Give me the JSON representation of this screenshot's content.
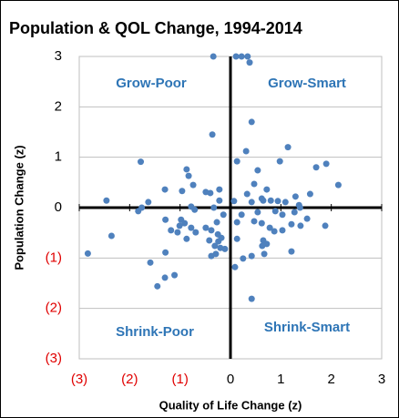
{
  "chart_data": {
    "type": "scatter",
    "title": "Population & QOL Change, 1994-2014",
    "x_label": "Quality of Life Change (z)",
    "y_label": "Population Change (z)",
    "annotations": [
      "Grow-Poor",
      "Grow-Smart",
      "Shrink-Poor",
      "Shrink-Smart"
    ],
    "annotation_color": "#2e75b6",
    "negative_tick_color": "#e00000",
    "color": "#4f81bd",
    "grid": true,
    "xlim": [
      -3,
      3
    ],
    "ylim": [
      -3,
      3
    ],
    "xticks": [
      {
        "value": -3,
        "label": "(3)"
      },
      {
        "value": -2,
        "label": "(2)"
      },
      {
        "value": -1,
        "label": "(1)"
      },
      0,
      1,
      2,
      3
    ],
    "yticks": [
      {
        "value": -3,
        "label": "(3)"
      },
      {
        "value": -2,
        "label": "(2)"
      },
      {
        "value": -1,
        "label": "(1)"
      },
      0,
      1,
      2,
      3
    ],
    "x": [
      -0.34,
      0.11,
      0.22,
      0.34,
      0.38,
      0.42,
      -0.36,
      1.14,
      0.31,
      0.13,
      0.98,
      -1.78,
      1.9,
      1.7,
      -0.87,
      0.54,
      -0.83,
      2.14,
      -0.74,
      0.47,
      -1.3,
      -0.96,
      -0.49,
      -0.4,
      -0.22,
      0.72,
      0.33,
      1.58,
      1.29,
      0.62,
      0.65,
      0.8,
      0.94,
      1.09,
      -2.46,
      -1.63,
      -0.22,
      0.07,
      0.42,
      1.36,
      1.38,
      -1.76,
      -0.33,
      -1.83,
      -0.78,
      -0.71,
      0.22,
      0.54,
      0.89,
      1.27,
      1.52,
      1.03,
      -0.14,
      -1.29,
      -0.98,
      -0.91,
      -0.27,
      0.13,
      0.47,
      0.62,
      1.21,
      1.88,
      -2.36,
      -1.01,
      -0.78,
      -0.49,
      -0.38,
      0.78,
      0.87,
      1.03,
      1.39,
      -1.18,
      -1.05,
      -0.69,
      -0.25,
      -0.18,
      0.13,
      0.65,
      -0.24,
      -0.87,
      -0.42,
      0.72,
      0.63,
      -0.31,
      -0.2,
      -0.11,
      -0.29,
      -1.29,
      1.21,
      -2.83,
      -0.38,
      0.42,
      0.25,
      0.67,
      0.09,
      -1.59,
      -1.3,
      -1.11,
      -1.45,
      0.42
    ],
    "values": [
      3,
      3,
      3,
      3,
      2.88,
      1.7,
      1.45,
      1.2,
      1.12,
      0.92,
      0.92,
      0.91,
      0.87,
      0.8,
      0.76,
      0.74,
      0.63,
      0.45,
      0.45,
      0.47,
      0.36,
      0.33,
      0.31,
      0.29,
      0.36,
      0.36,
      0.27,
      0.27,
      0.22,
      0.18,
      0.14,
      0.14,
      0.13,
      0.11,
      0.14,
      0.11,
      0.14,
      0.13,
      0.11,
      0.05,
      0,
      0,
      0,
      -0.07,
      0.02,
      -0.04,
      -0.14,
      -0.09,
      -0.07,
      -0.09,
      -0.22,
      -0.14,
      -0.14,
      -0.24,
      -0.24,
      -0.31,
      -0.29,
      -0.29,
      -0.27,
      -0.31,
      -0.33,
      -0.36,
      -0.56,
      -0.36,
      -0.4,
      -0.4,
      -0.45,
      -0.4,
      -0.47,
      -0.45,
      -0.36,
      -0.45,
      -0.49,
      -0.49,
      -0.53,
      -0.6,
      -0.62,
      -0.65,
      -0.67,
      -0.62,
      -0.65,
      -0.72,
      -0.76,
      -0.76,
      -0.8,
      -0.82,
      -0.92,
      -0.89,
      -0.87,
      -0.91,
      -0.96,
      -0.96,
      -1.01,
      -0.92,
      -1.18,
      -1.09,
      -1.39,
      -1.34,
      -1.56,
      -1.81
    ]
  }
}
